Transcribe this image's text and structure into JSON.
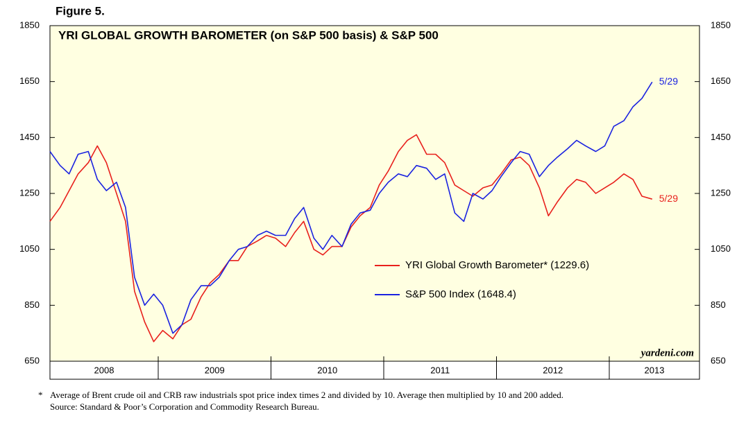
{
  "chart_data": {
    "type": "line",
    "figure_label": "Figure 5.",
    "title": "YRI GLOBAL GROWTH BAROMETER (on S&P 500 basis) & S&P 500",
    "x": [
      2008.04,
      2008.13,
      2008.21,
      2008.29,
      2008.38,
      2008.46,
      2008.54,
      2008.63,
      2008.71,
      2008.79,
      2008.88,
      2008.96,
      2009.04,
      2009.13,
      2009.21,
      2009.29,
      2009.38,
      2009.46,
      2009.54,
      2009.63,
      2009.71,
      2009.79,
      2009.88,
      2009.96,
      2010.04,
      2010.13,
      2010.21,
      2010.29,
      2010.38,
      2010.46,
      2010.54,
      2010.63,
      2010.71,
      2010.79,
      2010.88,
      2010.96,
      2011.04,
      2011.13,
      2011.21,
      2011.29,
      2011.38,
      2011.46,
      2011.54,
      2011.63,
      2011.71,
      2011.79,
      2011.88,
      2011.96,
      2012.04,
      2012.13,
      2012.21,
      2012.29,
      2012.38,
      2012.46,
      2012.54,
      2012.63,
      2012.71,
      2012.79,
      2012.88,
      2012.96,
      2013.04,
      2013.13,
      2013.21,
      2013.29,
      2013.38
    ],
    "series": [
      {
        "name": "YRI Global Growth Barometer* (1229.6)",
        "color": "#e8201c",
        "end_label": "5/29",
        "values": [
          1150,
          1200,
          1260,
          1320,
          1360,
          1420,
          1360,
          1250,
          1150,
          900,
          790,
          720,
          760,
          730,
          780,
          800,
          880,
          930,
          960,
          1010,
          1010,
          1060,
          1080,
          1100,
          1090,
          1060,
          1110,
          1150,
          1050,
          1030,
          1060,
          1060,
          1130,
          1170,
          1200,
          1280,
          1330,
          1400,
          1440,
          1460,
          1390,
          1390,
          1360,
          1280,
          1260,
          1240,
          1270,
          1280,
          1320,
          1370,
          1380,
          1350,
          1270,
          1170,
          1220,
          1270,
          1300,
          1290,
          1250,
          1270,
          1290,
          1320,
          1300,
          1240,
          1229.6
        ]
      },
      {
        "name": "S&P 500 Index (1648.4)",
        "color": "#1a22e0",
        "end_label": "5/29",
        "values": [
          1400,
          1350,
          1320,
          1390,
          1400,
          1300,
          1260,
          1290,
          1200,
          950,
          850,
          890,
          850,
          750,
          780,
          870,
          920,
          920,
          950,
          1010,
          1050,
          1060,
          1100,
          1115,
          1100,
          1100,
          1160,
          1200,
          1090,
          1050,
          1100,
          1060,
          1140,
          1180,
          1190,
          1250,
          1290,
          1320,
          1310,
          1350,
          1340,
          1300,
          1320,
          1180,
          1150,
          1250,
          1230,
          1260,
          1310,
          1360,
          1400,
          1390,
          1310,
          1350,
          1380,
          1410,
          1440,
          1420,
          1400,
          1420,
          1490,
          1510,
          1560,
          1590,
          1648.4
        ]
      }
    ],
    "xlim": [
      2008.04,
      2013.8
    ],
    "xticks": [
      2008,
      2009,
      2010,
      2011,
      2012,
      2013
    ],
    "ylim": [
      650,
      1850
    ],
    "yticks": [
      650,
      850,
      1050,
      1250,
      1450,
      1650,
      1850
    ],
    "y2lim": [
      650,
      1850
    ],
    "y2ticks": [
      650,
      850,
      1050,
      1250,
      1450,
      1650,
      1850
    ],
    "watermark": "yardeni.com",
    "footnote": "Average of Brent crude oil and CRB raw industrials spot price index times 2 and divided by 10. Average then multiplied by 10 and 200 added.",
    "footnote_marker": "*",
    "source": "Source: Standard & Poor’s Corporation and Commodity Research Bureau."
  }
}
